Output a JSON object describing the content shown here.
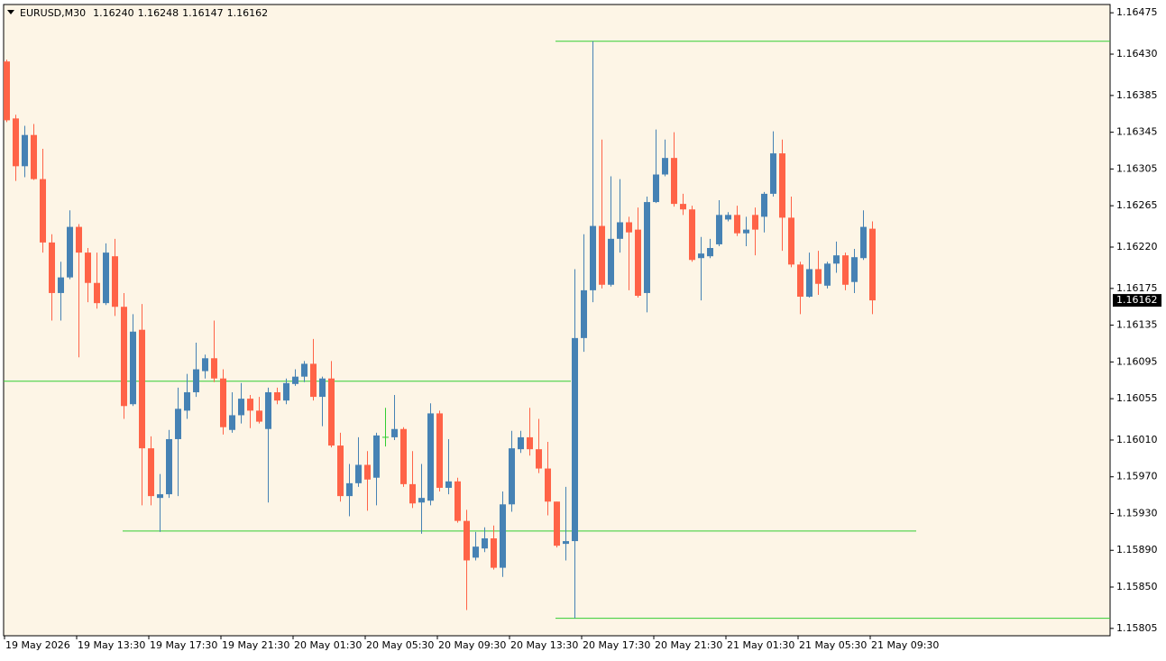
{
  "chart_data": {
    "type": "candlestick",
    "symbol": "EURUSD,M30",
    "header_ohlc": [
      "1.16240",
      "1.16248",
      "1.16147",
      "1.16162"
    ],
    "last_price_label": "1.16162",
    "open": [
      1.16422,
      1.1636,
      1.16308,
      1.16342,
      1.16294,
      1.16225,
      1.1617,
      1.16187,
      1.16242,
      1.16214,
      1.16181,
      1.16159,
      1.1621,
      1.16155,
      1.16049,
      1.1613,
      1.16001,
      1.15947,
      1.15951,
      1.16011,
      1.16042,
      1.16062,
      1.16085,
      1.16099,
      1.16077,
      1.16021,
      1.16037,
      1.16055,
      1.16042,
      1.16022,
      1.16062,
      1.16053,
      1.16071,
      1.16079,
      1.16093,
      1.16057,
      1.16077,
      1.16004,
      1.15949,
      1.15963,
      1.15983,
      1.15969,
      1.16013,
      1.16013,
      1.16022,
      1.15962,
      1.15942,
      1.15944,
      1.16039,
      1.15958,
      1.15965,
      1.15922,
      1.15882,
      1.15892,
      1.15903,
      1.15871,
      1.1594,
      1.16,
      1.16013,
      1.16,
      1.15979,
      1.15943,
      1.15897,
      1.159,
      1.16121,
      1.16173,
      1.16243,
      1.16179,
      1.16229,
      1.16247,
      1.16239,
      1.1617,
      1.16269,
      1.16299,
      1.16317,
      1.16267,
      1.16261,
      1.16208,
      1.1621,
      1.16223,
      1.1625,
      1.16255,
      1.16235,
      1.16255,
      1.16253,
      1.16278,
      1.16322,
      1.16252,
      1.16201,
      1.16166,
      1.16196,
      1.16178,
      1.16202,
      1.16211,
      1.16182,
      1.16208,
      1.1624
    ],
    "high": [
      1.16424,
      1.16364,
      1.16352,
      1.16354,
      1.16327,
      1.16234,
      1.16204,
      1.1626,
      1.16245,
      1.16219,
      1.16214,
      1.16224,
      1.16229,
      1.1617,
      1.16147,
      1.16158,
      1.16014,
      1.15973,
      1.16021,
      1.16067,
      1.16082,
      1.16116,
      1.16103,
      1.1614,
      1.16087,
      1.16062,
      1.16072,
      1.16059,
      1.16057,
      1.16067,
      1.16067,
      1.16077,
      1.16087,
      1.16096,
      1.1612,
      1.16079,
      1.16096,
      1.16018,
      1.15984,
      1.16013,
      1.15998,
      1.16018,
      1.16045,
      1.16059,
      1.16024,
      1.15998,
      1.15984,
      1.1605,
      1.16042,
      1.16011,
      1.15969,
      1.15934,
      1.1591,
      1.15915,
      1.15917,
      1.15954,
      1.1602,
      1.1602,
      1.16045,
      1.16033,
      1.16008,
      1.15943,
      1.15959,
      1.16196,
      1.16234,
      1.16444,
      1.16337,
      1.16297,
      1.16294,
      1.16253,
      1.16263,
      1.16275,
      1.16348,
      1.16337,
      1.16345,
      1.16278,
      1.16265,
      1.16231,
      1.16229,
      1.16271,
      1.16258,
      1.16265,
      1.16253,
      1.16263,
      1.1628,
      1.16346,
      1.16337,
      1.16275,
      1.16204,
      1.16214,
      1.16216,
      1.16204,
      1.16226,
      1.16214,
      1.16218,
      1.1626,
      1.16248
    ],
    "low": [
      1.16356,
      1.16292,
      1.16296,
      1.16293,
      1.16214,
      1.1614,
      1.1614,
      1.16185,
      1.161,
      1.1616,
      1.16153,
      1.16157,
      1.16145,
      1.16033,
      1.16047,
      1.15939,
      1.15939,
      1.1591,
      1.15947,
      1.15949,
      1.16033,
      1.16057,
      1.16077,
      1.16073,
      1.16016,
      1.16018,
      1.16028,
      1.16023,
      1.16028,
      1.15942,
      1.16049,
      1.16049,
      1.16069,
      1.16073,
      1.16053,
      1.16025,
      1.16002,
      1.15943,
      1.15927,
      1.15959,
      1.15933,
      1.15939,
      1.16003,
      1.1601,
      1.15959,
      1.15936,
      1.15908,
      1.15939,
      1.15954,
      1.15951,
      1.1592,
      1.15825,
      1.15879,
      1.15888,
      1.15869,
      1.15861,
      1.15932,
      1.15996,
      1.15993,
      1.15974,
      1.15928,
      1.15893,
      1.15879,
      1.15816,
      1.16106,
      1.1616,
      1.16175,
      1.16177,
      1.16214,
      1.16173,
      1.16165,
      1.16149,
      1.16268,
      1.16297,
      1.16264,
      1.16255,
      1.16204,
      1.16162,
      1.16208,
      1.16221,
      1.16248,
      1.16232,
      1.16221,
      1.16211,
      1.16236,
      1.16275,
      1.16216,
      1.16198,
      1.16147,
      1.16165,
      1.16168,
      1.16175,
      1.16192,
      1.16173,
      1.1617,
      1.16206,
      1.16147
    ],
    "close": [
      1.16358,
      1.16308,
      1.16342,
      1.16294,
      1.16225,
      1.1617,
      1.16187,
      1.16242,
      1.16214,
      1.16181,
      1.16159,
      1.16214,
      1.16155,
      1.16047,
      1.16128,
      1.16001,
      1.15949,
      1.15951,
      1.16011,
      1.16044,
      1.16062,
      1.16087,
      1.16099,
      1.16077,
      1.16024,
      1.16037,
      1.16055,
      1.16042,
      1.1603,
      1.16062,
      1.16053,
      1.16072,
      1.16079,
      1.16093,
      1.16057,
      1.16077,
      1.16004,
      1.15949,
      1.15963,
      1.15983,
      1.15967,
      1.16015,
      1.16013,
      1.16022,
      1.15962,
      1.15941,
      1.15947,
      1.16039,
      1.15958,
      1.15965,
      1.15922,
      1.15879,
      1.15894,
      1.15903,
      1.15871,
      1.1594,
      1.16001,
      1.16013,
      1.16,
      1.15979,
      1.15943,
      1.15895,
      1.159,
      1.16121,
      1.16173,
      1.16243,
      1.16179,
      1.16229,
      1.16247,
      1.16236,
      1.16167,
      1.16269,
      1.16299,
      1.16317,
      1.16267,
      1.16261,
      1.16206,
      1.16213,
      1.16219,
      1.16255,
      1.16255,
      1.16235,
      1.16239,
      1.16239,
      1.16278,
      1.16322,
      1.16252,
      1.16201,
      1.16166,
      1.16196,
      1.1618,
      1.16202,
      1.16211,
      1.16179,
      1.16209,
      1.16242,
      1.16162
    ],
    "levels": [
      1.16444,
      1.16074,
      1.15911,
      1.15816
    ],
    "xtick_labels": [
      "19 May 2026",
      "19 May 13:30",
      "19 May 17:30",
      "19 May 21:30",
      "20 May 01:30",
      "20 May 05:30",
      "20 May 09:30",
      "20 May 13:30",
      "20 May 17:30",
      "20 May 21:30",
      "21 May 01:30",
      "21 May 05:30",
      "21 May 09:30"
    ],
    "ylim": [
      1.15797,
      1.16484
    ],
    "yticks": [
      1.16475,
      {
        "value": 1.1643,
        "label": "1.16430"
      },
      1.16385,
      1.16345,
      1.16305,
      1.16265,
      {
        "value": 1.1622,
        "label": "1.16220"
      },
      1.16175,
      1.16135,
      1.16095,
      1.16055,
      {
        "value": 1.1601,
        "label": "1.16010"
      },
      {
        "value": 1.1597,
        "label": "1.15970"
      },
      {
        "value": 1.1593,
        "label": "1.15930"
      },
      {
        "value": 1.1589,
        "label": "1.15890"
      },
      {
        "value": 1.1585,
        "label": "1.15850"
      },
      1.15805
    ],
    "colors": {
      "bull": "#4682b4",
      "bear": "#ff6347",
      "doji": "#32cd32",
      "levels": "#32cd32",
      "background": "#fdf5e6"
    }
  }
}
